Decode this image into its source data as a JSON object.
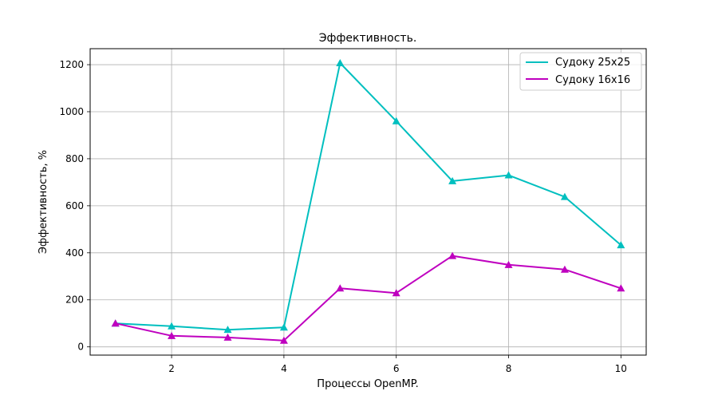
{
  "chart_data": {
    "type": "line",
    "title": "Эффективность.",
    "xlabel": "Процессы OpenMP.",
    "ylabel": "Эффективность, %",
    "x": [
      1,
      2,
      3,
      4,
      5,
      6,
      7,
      8,
      9,
      10
    ],
    "xlim": [
      0.55,
      10.45
    ],
    "ylim": [
      -35,
      1268
    ],
    "xticks": [
      2,
      4,
      6,
      8,
      10
    ],
    "xtick_labels": [
      "2",
      "4",
      "6",
      "8",
      "10"
    ],
    "yticks": [
      0,
      200,
      400,
      600,
      800,
      1000,
      1200
    ],
    "ytick_labels": [
      "0",
      "200",
      "400",
      "600",
      "800",
      "1000",
      "1200"
    ],
    "grid": true,
    "legend_position": "top-right",
    "marker": "triangle",
    "series": [
      {
        "name": "Судоку 25x25",
        "color": "#00bfbf",
        "values": [
          100,
          88,
          73,
          83,
          1207,
          960,
          705,
          730,
          638,
          433
        ]
      },
      {
        "name": "Судоку 16x16",
        "color": "#bf00bf",
        "values": [
          100,
          47,
          40,
          27,
          249,
          229,
          387,
          349,
          329,
          249
        ]
      }
    ]
  }
}
